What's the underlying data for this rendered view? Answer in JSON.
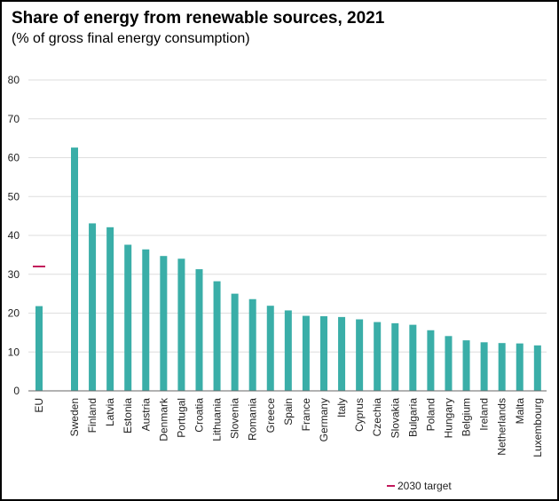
{
  "chart_data": {
    "type": "bar",
    "title": "Share of energy from renewable sources, 2021",
    "subtitle": "(% of gross final energy consumption)",
    "xlabel": "",
    "ylabel": "",
    "ylim": [
      0,
      80
    ],
    "yticks": [
      0,
      10,
      20,
      30,
      40,
      50,
      60,
      70,
      80
    ],
    "grid": true,
    "legend_position": "bottom-right",
    "bar_color": "#3aaea8",
    "target_color": "#c2185b",
    "categories": [
      "EU",
      "Sweden",
      "Finland",
      "Latvia",
      "Estonia",
      "Austria",
      "Denmark",
      "Portugal",
      "Croatia",
      "Lithuania",
      "Slovenia",
      "Romania",
      "Greece",
      "Spain",
      "France",
      "Germany",
      "Italy",
      "Cyprus",
      "Czechia",
      "Slovakia",
      "Bulgaria",
      "Poland",
      "Hungary",
      "Belgium",
      "Ireland",
      "Netherlands",
      "Malta",
      "Luxembourg"
    ],
    "series": [
      {
        "values": [
          21.8,
          62.6,
          43.1,
          42.1,
          37.6,
          36.4,
          34.7,
          34.0,
          31.3,
          28.2,
          25.0,
          23.6,
          21.9,
          20.7,
          19.3,
          19.2,
          19.0,
          18.4,
          17.7,
          17.4,
          17.0,
          15.6,
          14.1,
          13.0,
          12.5,
          12.3,
          12.2,
          11.7
        ]
      }
    ],
    "targets": [
      {
        "name": "2030 target",
        "category": "EU",
        "value": 32
      }
    ]
  }
}
